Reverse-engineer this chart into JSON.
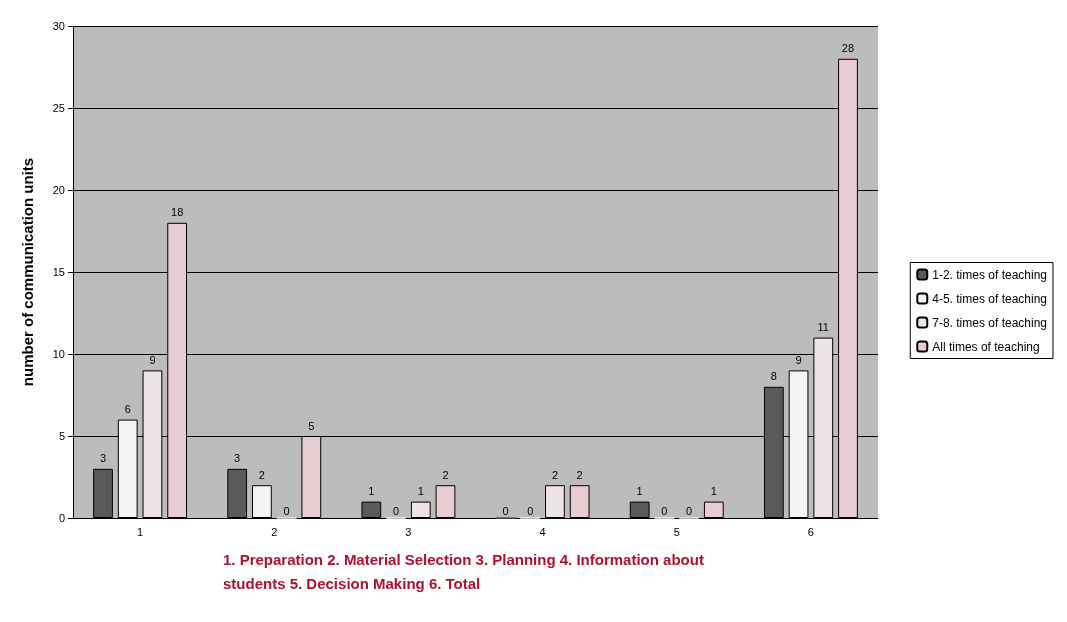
{
  "chart_data": {
    "type": "bar",
    "ylabel": "number of communication units",
    "xlabel": "1. Preparation 2. Material Selection 3. Planning 4. Information about students 5. Decision Making 6. Total",
    "categories": [
      "1",
      "2",
      "3",
      "4",
      "5",
      "6"
    ],
    "series": [
      {
        "name": "1-2. times of teaching",
        "color": "#5a5a5a",
        "values": [
          3,
          3,
          1,
          0,
          1,
          8
        ]
      },
      {
        "name": "4-5. times of teaching",
        "color": "#f4f4f4",
        "values": [
          6,
          2,
          0,
          0,
          0,
          9
        ]
      },
      {
        "name": "7-8. times of teaching",
        "color": "#ece4e6",
        "values": [
          9,
          0,
          1,
          2,
          0,
          11
        ]
      },
      {
        "name": "All times of teaching",
        "color": "#e8ccd2",
        "values": [
          18,
          5,
          2,
          2,
          1,
          28
        ]
      }
    ],
    "ylim": [
      0,
      30
    ],
    "yticks": [
      0,
      5,
      10,
      15,
      20,
      25,
      30
    ],
    "grid": "y",
    "legend": "right",
    "data_labels": true
  }
}
